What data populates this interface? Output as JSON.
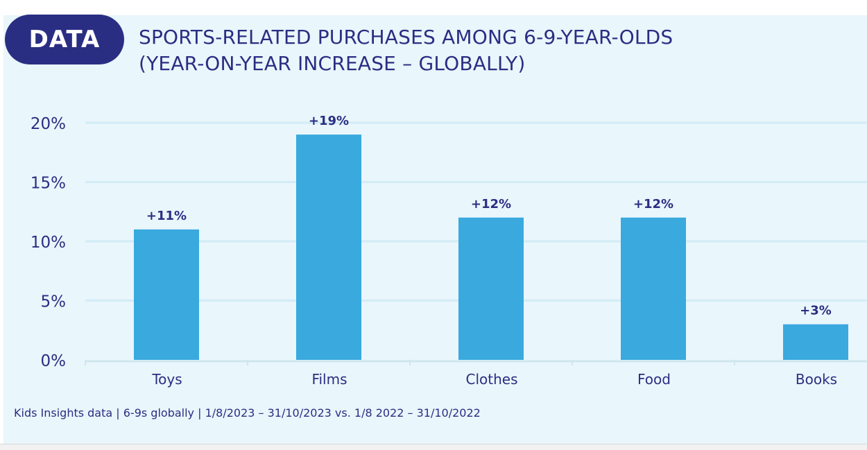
{
  "badge": "DATA",
  "title_line1": "SPORTS-RELATED PURCHASES AMONG 6-9-YEAR-OLDS",
  "title_line2": "(YEAR-ON-YEAR INCREASE – GLOBALLY)",
  "footnote": "Kids Insights data | 6-9s globally | 1/8/2023 – 31/10/2023 vs. 1/8 2022 – 31/10/2022",
  "colors": {
    "bar": "#39a9de",
    "navy": "#2a2e83",
    "grid": "#d2ecf6",
    "background": "#e9f6fb"
  },
  "chart_data": {
    "type": "bar",
    "categories": [
      "Toys",
      "Films",
      "Clothes",
      "Food",
      "Books"
    ],
    "values": [
      11,
      19,
      12,
      12,
      3
    ],
    "data_labels": [
      "+11%",
      "+19%",
      "+12%",
      "+12%",
      "+3%"
    ],
    "yticks": [
      0,
      5,
      10,
      15,
      20
    ],
    "ytick_labels": [
      "0%",
      "5%",
      "10%",
      "15%",
      "20%"
    ],
    "ylim": [
      0,
      20
    ],
    "grid": true,
    "legend": "none"
  }
}
